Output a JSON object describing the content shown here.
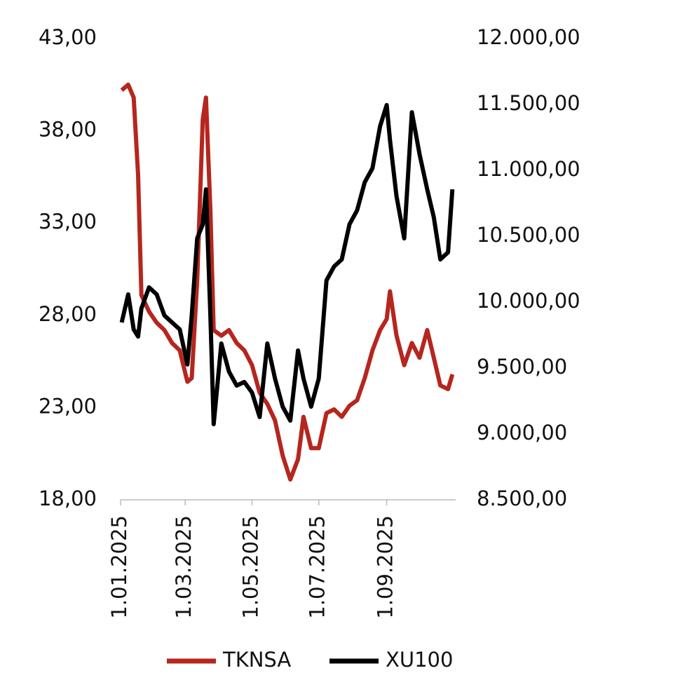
{
  "chart_data": {
    "type": "line",
    "x": [
      "2025-01-02",
      "2025-01-08",
      "2025-01-13",
      "2025-01-17",
      "2025-01-20",
      "2025-01-27",
      "2025-02-03",
      "2025-02-10",
      "2025-02-17",
      "2025-02-24",
      "2025-03-03",
      "2025-03-07",
      "2025-03-12",
      "2025-03-17",
      "2025-03-20",
      "2025-03-24",
      "2025-03-27",
      "2025-04-03",
      "2025-04-10",
      "2025-04-17",
      "2025-04-24",
      "2025-05-01",
      "2025-05-08",
      "2025-05-15",
      "2025-05-22",
      "2025-05-29",
      "2025-06-05",
      "2025-06-12",
      "2025-06-17",
      "2025-06-24",
      "2025-07-01",
      "2025-07-08",
      "2025-07-15",
      "2025-07-22",
      "2025-07-29",
      "2025-08-05",
      "2025-08-12",
      "2025-08-19",
      "2025-08-26",
      "2025-09-01",
      "2025-09-04",
      "2025-09-10",
      "2025-09-17",
      "2025-09-24",
      "2025-10-01",
      "2025-10-08",
      "2025-10-14",
      "2025-10-20",
      "2025-10-27",
      "2025-10-31"
    ],
    "series": [
      {
        "name": "TKNSA",
        "color": "#b5261e",
        "values": [
          40.2,
          40.5,
          39.8,
          35.6,
          29.1,
          28.2,
          27.6,
          27.2,
          26.5,
          26.1,
          24.4,
          24.6,
          29.9,
          38.6,
          39.8,
          33.7,
          27.2,
          26.9,
          27.2,
          26.5,
          26.1,
          25.3,
          23.8,
          23.2,
          22.3,
          20.4,
          19.1,
          20.2,
          22.5,
          20.8,
          20.8,
          22.7,
          22.9,
          22.5,
          23.1,
          23.4,
          24.6,
          26.1,
          27.2,
          27.8,
          29.3,
          26.9,
          25.3,
          26.5,
          25.7,
          27.2,
          25.7,
          24.2,
          24.0,
          24.8
        ]
      },
      {
        "name": "XU100",
        "color": "#000000",
        "axis": "y2",
        "values": [
          9846,
          10059,
          9793,
          9739,
          9952,
          10112,
          10059,
          9899,
          9846,
          9793,
          9527,
          9899,
          10484,
          10590,
          10856,
          9899,
          9074,
          9686,
          9473,
          9367,
          9394,
          9314,
          9128,
          9686,
          9420,
          9207,
          9101,
          9633,
          9420,
          9207,
          9420,
          10165,
          10271,
          10324,
          10590,
          10697,
          10910,
          11016,
          11335,
          11495,
          11229,
          10803,
          10484,
          11441,
          11122,
          10856,
          10644,
          10324,
          10378,
          10856
        ]
      }
    ],
    "xlim": [
      "2025-01-01",
      "2025-11-03"
    ],
    "xticks": [
      {
        "value": "2025-01-01",
        "label": "1.01.2025"
      },
      {
        "value": "2025-03-01",
        "label": "1.03.2025"
      },
      {
        "value": "2025-05-01",
        "label": "1.05.2025"
      },
      {
        "value": "2025-07-01",
        "label": "1.07.2025"
      },
      {
        "value": "2025-09-01",
        "label": "1.09.2025"
      }
    ],
    "ylim": [
      18,
      43
    ],
    "yticks": [
      {
        "value": 18,
        "label": "18,00"
      },
      {
        "value": 23,
        "label": "23,00"
      },
      {
        "value": 28,
        "label": "28,00"
      },
      {
        "value": 33,
        "label": "33,00"
      },
      {
        "value": 38,
        "label": "38,00"
      },
      {
        "value": 43,
        "label": "43,00"
      }
    ],
    "y2lim": [
      8500,
      12000
    ],
    "y2ticks": [
      {
        "value": 8500,
        "label": "8.500,00"
      },
      {
        "value": 9000,
        "label": "9.000,00"
      },
      {
        "value": 9500,
        "label": "9.500,00"
      },
      {
        "value": 10000,
        "label": "10.000,00"
      },
      {
        "value": 10500,
        "label": "10.500,00"
      },
      {
        "value": 11000,
        "label": "11.000,00"
      },
      {
        "value": 11500,
        "label": "11.500,00"
      },
      {
        "value": 12000,
        "label": "12.000,00"
      }
    ],
    "grid": false,
    "legend": "bottom"
  }
}
